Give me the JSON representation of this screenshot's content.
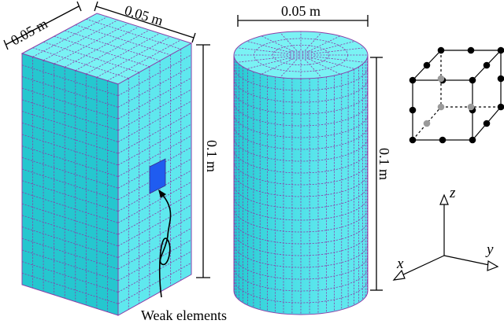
{
  "labels": {
    "box_width": "0.05 m",
    "box_depth": "0.05 m",
    "box_height": "0.1 m",
    "cyl_diameter": "0.05 m",
    "cyl_height": "0.1 m",
    "weak_elements": "Weak elements",
    "axis_x": "x",
    "axis_y": "y",
    "axis_z": "z"
  },
  "colors": {
    "mesh_fill_light": "#5fe8ee",
    "mesh_fill_front": "#25c7cf",
    "mesh_fill_top": "#7af2f4",
    "mesh_line": "#8a3fa8",
    "weak_fill": "#1f5cf0",
    "node_black": "#000000",
    "node_grey": "#9a9a9a"
  },
  "mesh": {
    "box_columns": 9,
    "box_rows": 20,
    "box_side_columns": 5,
    "cyl_rows": 20
  }
}
